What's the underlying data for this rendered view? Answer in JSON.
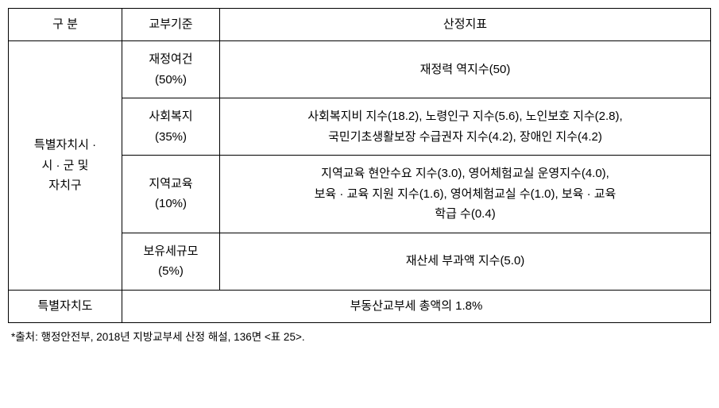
{
  "table": {
    "headers": {
      "category": "구 분",
      "criterion": "교부기준",
      "indicator": "산정지표"
    },
    "main_category": "특별자치시 ·\n시 · 군 및\n자치구",
    "rows": [
      {
        "criterion": "재정여건\n(50%)",
        "indicator": "재정력 역지수(50)"
      },
      {
        "criterion": "사회복지\n(35%)",
        "indicator": "사회복지비 지수(18.2), 노령인구 지수(5.6), 노인보호 지수(2.8),\n국민기초생활보장 수급권자 지수(4.2), 장애인 지수(4.2)"
      },
      {
        "criterion": "지역교육\n(10%)",
        "indicator": "지역교육 현안수요 지수(3.0), 영어체험교실 운영지수(4.0),\n보육 · 교육 지원 지수(1.6), 영어체험교실 수(1.0), 보육 · 교육\n학급 수(0.4)"
      },
      {
        "criterion": "보유세규모\n(5%)",
        "indicator": "재산세 부과액 지수(5.0)"
      }
    ],
    "bottom_row": {
      "category": "특별자치도",
      "content": "부동산교부세 총액의 1.8%"
    }
  },
  "source": "*출처: 행정안전부, 2018년 지방교부세 산정 해설, 136면 <표 25>.",
  "styles": {
    "font_size_table": 15,
    "font_size_source": 13.5,
    "border_color": "#000000",
    "background_color": "#ffffff",
    "text_color": "#000000",
    "col_widths": {
      "category": 143,
      "criterion": 123
    }
  }
}
